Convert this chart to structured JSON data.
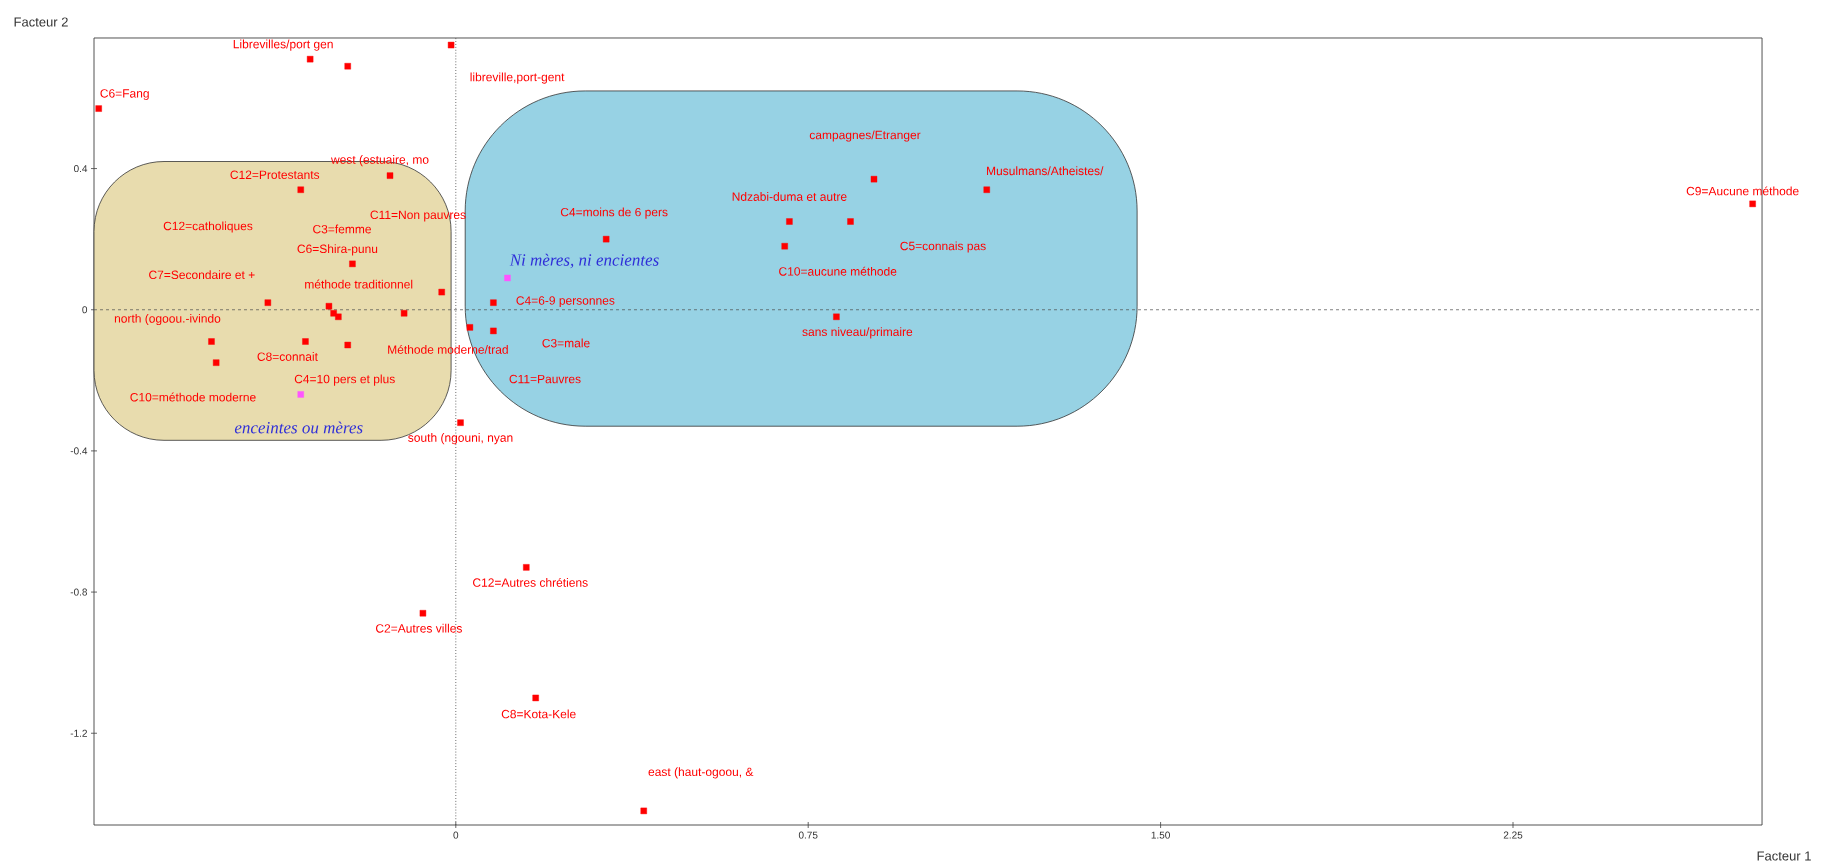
{
  "chart_data": {
    "type": "scatter",
    "xlabel": "Facteur 1",
    "ylabel": "Facteur 2",
    "xlim": [
      -0.77,
      2.78
    ],
    "ylim": [
      -1.46,
      0.77
    ],
    "xticks": [
      0,
      0.75,
      {
        "value": 1.5,
        "label": "1.50"
      },
      2.25
    ],
    "yticks": [
      -1.2,
      -0.8,
      -0.4,
      0,
      0.4
    ],
    "grid": false,
    "marker": "square",
    "ref_lines": [
      {
        "axis": "x",
        "value": 0,
        "line_style": "dotted"
      },
      {
        "axis": "y",
        "value": 0,
        "line_style": "dashed"
      }
    ],
    "series": [
      {
        "color": "#ff0000",
        "x": [
          -0.01,
          -0.31,
          -0.23,
          -0.76,
          -0.14,
          -0.33,
          -0.22,
          -0.03,
          -0.4,
          -0.27,
          -0.26,
          -0.25,
          -0.11,
          -0.52,
          -0.51,
          -0.32,
          -0.23,
          0.01,
          0.32,
          0.08,
          0.03,
          0.08,
          0.89,
          0.71,
          0.84,
          0.7,
          0.81,
          1.13,
          2.76,
          0.15,
          -0.07,
          0.17,
          0.4
        ],
        "values": [
          0.75,
          0.71,
          0.69,
          0.57,
          0.38,
          0.34,
          0.13,
          0.05,
          0.02,
          0.01,
          -0.01,
          -0.02,
          -0.01,
          -0.09,
          -0.15,
          -0.09,
          -0.1,
          -0.32,
          0.2,
          0.02,
          -0.05,
          -0.06,
          0.37,
          0.25,
          0.25,
          0.18,
          -0.02,
          0.34,
          0.3,
          -0.73,
          -0.86,
          -1.1,
          -1.42
        ]
      },
      {
        "color": "#ff55ff",
        "x": [
          -0.33,
          0.11
        ],
        "values": [
          -0.24,
          0.09
        ]
      }
    ],
    "annotations": [
      {
        "text": "Librevilles/port gen",
        "x": -0.31,
        "y": 0.71
      },
      {
        "text": "libreville,port-gent",
        "x": -0.01,
        "y": 0.75
      },
      {
        "text": "C6=Fang",
        "x": -0.76,
        "y": 0.57
      },
      {
        "text": "C12=Protestants",
        "x": -0.33,
        "y": 0.34
      },
      {
        "text": "west (estuaire, mo",
        "x": -0.14,
        "y": 0.38
      },
      "C11=Non pauvres",
      "C12=catholiques",
      "C3=femme",
      {
        "text": "C6=Shira-punu",
        "x": -0.22,
        "y": 0.13
      },
      {
        "text": "C7=Secondaire et +",
        "x": -0.4,
        "y": 0.02
      },
      {
        "text": "méthode traditionnel",
        "x": -0.03,
        "y": 0.05
      },
      {
        "text": "north (ogoou.-ivindo",
        "x": -0.52,
        "y": -0.09
      },
      {
        "text": "Méthode moderne/trad",
        "x": 0.03,
        "y": -0.05
      },
      {
        "text": "C8=connait",
        "x": -0.32,
        "y": -0.09
      },
      {
        "text": "C4=10 pers et plus",
        "x": -0.23,
        "y": -0.1
      },
      "C10=méthode moderne",
      {
        "text": "south (ngouni, nyan",
        "x": 0.01,
        "y": -0.32
      },
      {
        "text": "C4=moins de 6 pers",
        "x": 0.32,
        "y": 0.2
      },
      {
        "text": "C4=6-9 personnes",
        "x": 0.08,
        "y": 0.02
      },
      "C3=male",
      "C11=Pauvres",
      "campagnes/Etranger",
      {
        "text": "Ndzabi-duma et autre",
        "x": 0.71,
        "y": 0.25
      },
      "C5=connais pas",
      {
        "text": "C10=aucune méthode",
        "x": 0.7,
        "y": 0.18
      },
      {
        "text": "sans niveau/primaire",
        "x": 0.81,
        "y": -0.02
      },
      {
        "text": "Musulmans/Atheistes/",
        "x": 1.13,
        "y": 0.34
      },
      {
        "text": "C9=Aucune méthode",
        "x": 2.76,
        "y": 0.3
      },
      {
        "text": "C12=Autres chrétiens",
        "x": 0.15,
        "y": -0.73
      },
      {
        "text": "C2=Autres villes",
        "x": -0.07,
        "y": -0.86
      },
      {
        "text": "C8=Kota-Kele",
        "x": 0.17,
        "y": -1.1
      },
      {
        "text": "east (haut-ogoou, &",
        "x": 0.4,
        "y": -1.42
      },
      {
        "text": "enceintes ou mères",
        "x": -0.33,
        "y": -0.24
      },
      {
        "text": "Ni mères, ni encientes",
        "x": 0.11,
        "y": 0.09
      }
    ]
  }
}
